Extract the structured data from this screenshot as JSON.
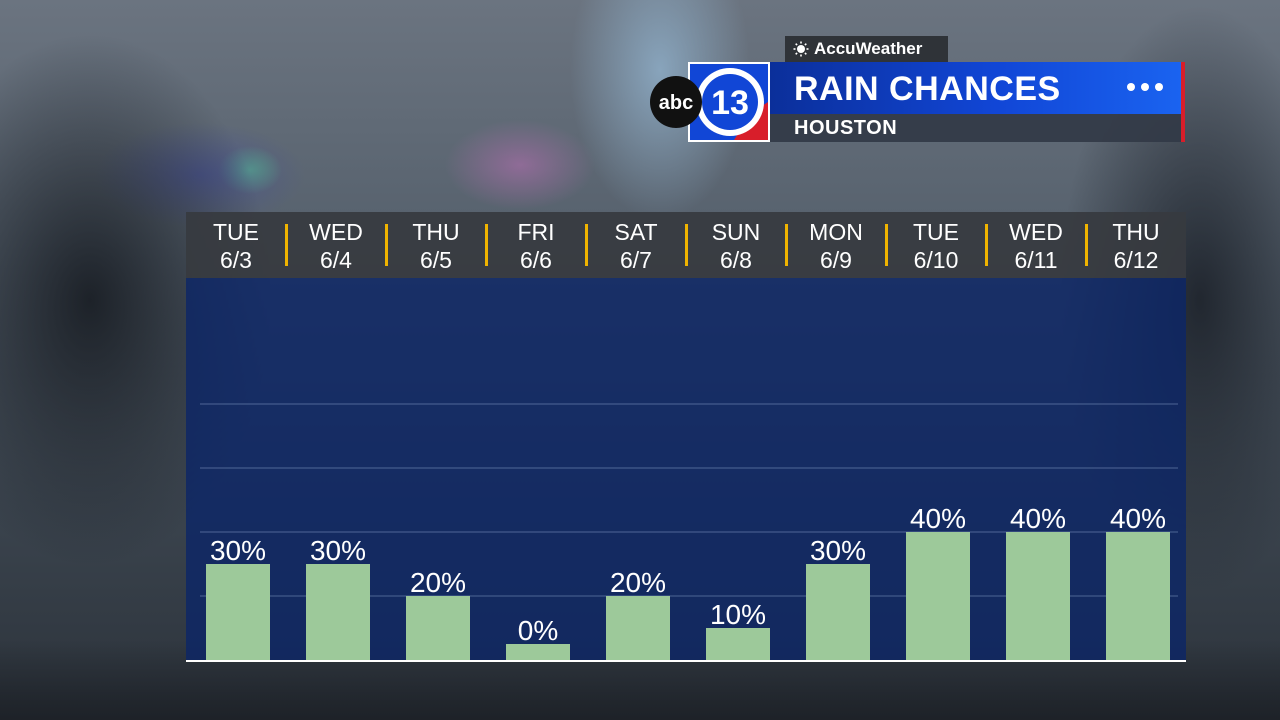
{
  "header": {
    "sponsor": "AccuWeather",
    "logo_text": "abc",
    "logo_number": "13",
    "title": "RAIN CHANCES",
    "subtitle": "HOUSTON"
  },
  "colors": {
    "bar": "#9dc99a",
    "plot_bg": "#0c2666",
    "title_bg": "#1146d6",
    "separator": "#f0b400",
    "accent_red": "#d81e2a"
  },
  "icons": [
    "sun-icon",
    "more-dots-icon"
  ],
  "chart_data": {
    "type": "bar",
    "categories": [
      {
        "day": "TUE",
        "date": "6/3"
      },
      {
        "day": "WED",
        "date": "6/4"
      },
      {
        "day": "THU",
        "date": "6/5"
      },
      {
        "day": "FRI",
        "date": "6/6"
      },
      {
        "day": "SAT",
        "date": "6/7"
      },
      {
        "day": "SUN",
        "date": "6/8"
      },
      {
        "day": "MON",
        "date": "6/9"
      },
      {
        "day": "TUE",
        "date": "6/10"
      },
      {
        "day": "WED",
        "date": "6/11"
      },
      {
        "day": "THU",
        "date": "6/12"
      }
    ],
    "values": [
      30,
      30,
      20,
      0,
      20,
      10,
      30,
      40,
      40,
      40
    ],
    "value_labels": [
      "30%",
      "30%",
      "20%",
      "0%",
      "20%",
      "10%",
      "30%",
      "40%",
      "40%",
      "40%"
    ],
    "ylim": [
      0,
      100
    ],
    "grid": true,
    "title": "RAIN CHANCES",
    "xlabel": "",
    "ylabel": ""
  }
}
